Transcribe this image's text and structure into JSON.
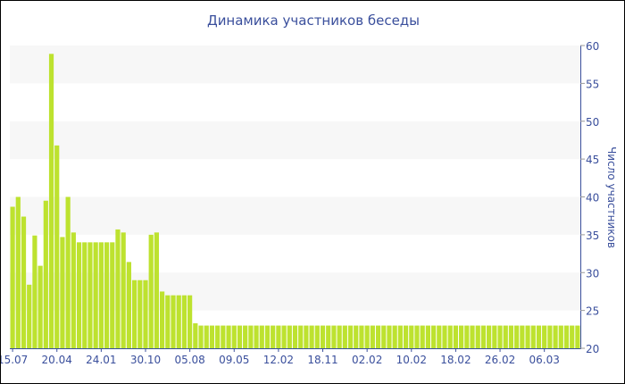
{
  "chart_data": {
    "type": "bar",
    "title": "Динамика участников беседы",
    "ylabel": "Число участников",
    "xlabel": "",
    "ylim": [
      20,
      60
    ],
    "y_ticks": [
      20,
      25,
      30,
      35,
      40,
      45,
      50,
      55,
      60
    ],
    "y_axis_position": "right",
    "grid": "alternating horizontal bands",
    "legend": "none",
    "bar_color": "#bde22f",
    "text_color": "#3a4f9c",
    "band_color": "#f7f7f7",
    "x_tick_labels": [
      "15.07",
      "20.04",
      "24.01",
      "30.10",
      "05.08",
      "09.05",
      "12.02",
      "18.11",
      "02.02",
      "10.02",
      "18.02",
      "26.02",
      "06.03"
    ],
    "x_tick_every_n_bars": 8,
    "values": [
      38.7,
      40,
      37.4,
      28.4,
      34.9,
      30.9,
      39.5,
      58.9,
      46.8,
      34.7,
      40,
      35.3,
      34,
      34,
      34,
      34,
      34,
      34,
      34,
      35.7,
      35.3,
      31.4,
      29,
      29,
      29,
      35,
      35.3,
      27.5,
      27,
      27,
      27,
      27,
      27,
      23.3,
      23,
      23,
      23,
      23,
      23,
      23,
      23,
      23,
      23,
      23,
      23,
      23,
      23,
      23,
      23,
      23,
      23,
      23,
      23,
      23,
      23,
      23,
      23,
      23,
      23,
      23,
      23,
      23,
      23,
      23,
      23,
      23,
      23,
      23,
      23,
      23,
      23,
      23,
      23,
      23,
      23,
      23,
      23,
      23,
      23,
      23,
      23,
      23,
      23,
      23,
      23,
      23,
      23,
      23,
      23,
      23,
      23,
      23,
      23,
      23,
      23,
      23,
      23,
      23,
      23,
      23,
      23,
      23,
      23
    ]
  }
}
